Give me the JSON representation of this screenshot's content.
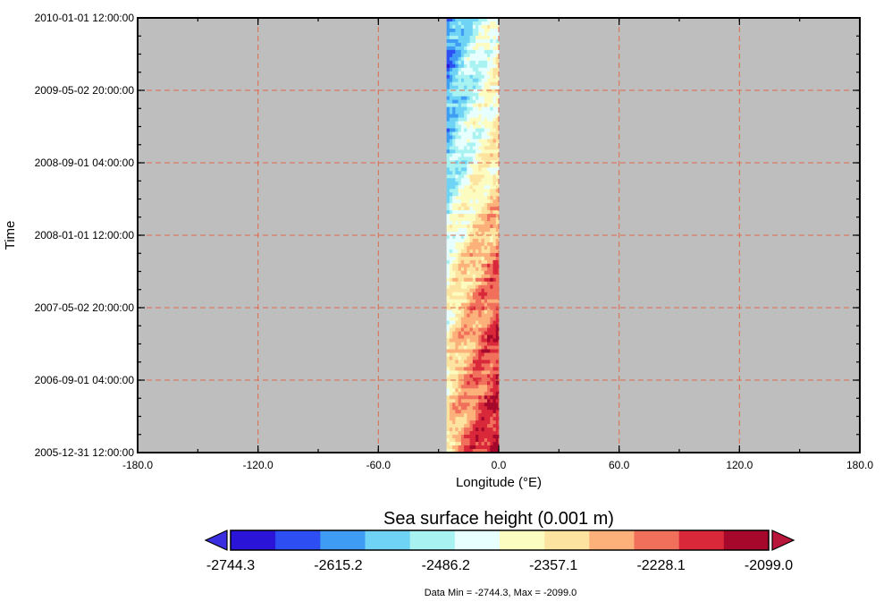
{
  "chart_data": {
    "type": "heatmap",
    "title": "",
    "xlabel": "Longitude (°E)",
    "ylabel": "Time",
    "xlim": [
      -180,
      180
    ],
    "x_ticks": [
      -180,
      -120,
      -60,
      0,
      60,
      120,
      180
    ],
    "x_tick_labels": [
      "-180.0",
      "-120.0",
      "-60.0",
      "0.0",
      "60.0",
      "120.0",
      "180.0"
    ],
    "y_tick_labels": [
      "2010-01-01 12:00:00",
      "2009-05-02 20:00:00",
      "2008-09-01 04:00:00",
      "2008-01-01 12:00:00",
      "2007-05-02 20:00:00",
      "2006-09-01 04:00:00",
      "2005-12-31 12:00:00"
    ],
    "ylim": [
      "2005-12-31 12:00:00",
      "2010-01-01 12:00:00"
    ],
    "grid": true,
    "grid_color": "#e06a4e",
    "background_color": "#bebebe",
    "data_lon_range": [
      -26,
      0
    ],
    "values_by_period": [
      {
        "time": "2009-05-02 to 2010-01-01",
        "west_value": -2650,
        "east_value": -2420
      },
      {
        "time": "2008-09-01 to 2009-05-02",
        "west_value": -2600,
        "east_value": -2380
      },
      {
        "time": "2008-01-01 to 2008-09-01",
        "west_value": -2520,
        "east_value": -2330
      },
      {
        "time": "2007-05-02 to 2008-01-01",
        "west_value": -2420,
        "east_value": -2230
      },
      {
        "time": "2006-09-01 to 2007-05-02",
        "west_value": -2380,
        "east_value": -2190
      },
      {
        "time": "2005-12-31 to 2006-09-01",
        "west_value": -2340,
        "east_value": -2130
      }
    ],
    "colorbar": {
      "title": "Sea surface height (0.001 m)",
      "min": -2744.3,
      "max": -2099.0,
      "tick_labels": [
        "-2744.3",
        "-2615.2",
        "-2486.2",
        "-2357.1",
        "-2228.1",
        "-2099.0"
      ],
      "colors": [
        "#2a14d8",
        "#2d4ef2",
        "#3f9cf5",
        "#6fd3f5",
        "#a8f2f2",
        "#e8ffff",
        "#fcfcc0",
        "#fde3a0",
        "#fcb07a",
        "#f0705c",
        "#d8283a",
        "#a5082a"
      ],
      "under_color": "#3a2fe0",
      "over_color": "#b8163a"
    },
    "footer": "Data Min = -2744.3, Max = -2099.0"
  }
}
